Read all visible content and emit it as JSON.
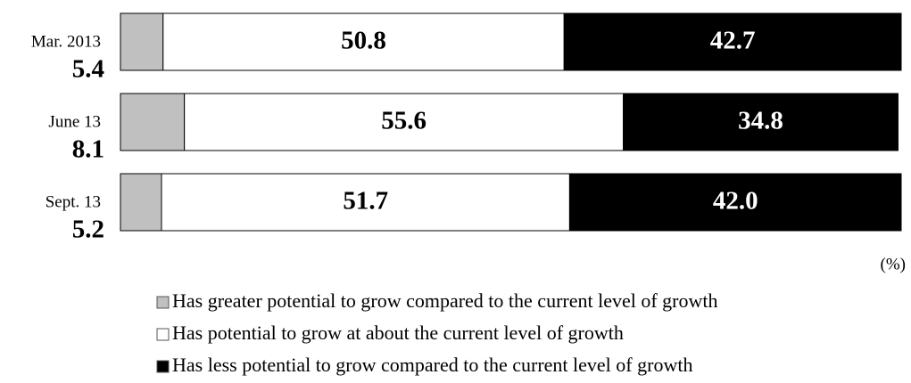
{
  "chart_data": {
    "type": "stacked-bar-horizontal",
    "categories": [
      "Mar. 2013",
      "June 13",
      "Sept. 13"
    ],
    "series": [
      {
        "name": "Has greater potential to grow compared to the current level of growth",
        "color": "#c0c0c0",
        "values": [
          5.4,
          8.1,
          5.2
        ]
      },
      {
        "name": "Has potential to grow at about the current level of growth",
        "color": "#ffffff",
        "values": [
          50.8,
          55.6,
          51.7
        ]
      },
      {
        "name": "Has less potential to grow compared to the current level of growth",
        "color": "#000000",
        "values": [
          42.7,
          34.8,
          42.0
        ],
        "value_labels": [
          "42.7",
          "34.8",
          "42.0"
        ]
      }
    ],
    "unit": "(%)"
  }
}
